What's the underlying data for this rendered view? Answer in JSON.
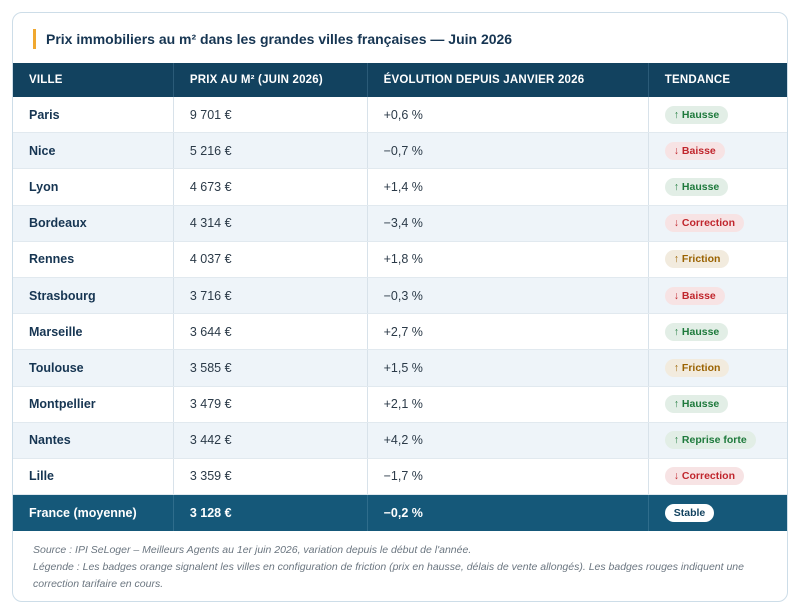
{
  "title": "Prix immobiliers au m² dans les grandes villes françaises — Juin 2026",
  "table": {
    "columns": [
      "VILLE",
      "PRIX AU M² (JUIN 2026)",
      "ÉVOLUTION DEPUIS JANVIER 2026",
      "TENDANCE"
    ],
    "rows": [
      [
        "Paris",
        "9 701 €",
        "+0,6 %",
        {
          "text": "↑ Hausse",
          "color": "#1e7a3c"
        }
      ],
      [
        "Nice",
        "5 216 €",
        "−0,7 %",
        {
          "text": "↓ Baisse",
          "color": "#c0262d"
        }
      ],
      [
        "Lyon",
        "4 673 €",
        "+1,4 %",
        {
          "text": "↑ Hausse",
          "color": "#1e7a3c"
        }
      ],
      [
        "Bordeaux",
        "4 314 €",
        "−3,4 %",
        {
          "text": "↓ Correction",
          "color": "#c0262d"
        }
      ],
      [
        "Rennes",
        "4 037 €",
        "+1,8 %",
        {
          "text": "↑ Friction",
          "color": "#9a6200"
        }
      ],
      [
        "Strasbourg",
        "3 716 €",
        "−0,3 %",
        {
          "text": "↓ Baisse",
          "color": "#c0262d"
        }
      ],
      [
        "Marseille",
        "3 644 €",
        "+2,7 %",
        {
          "text": "↑ Hausse",
          "color": "#1e7a3c"
        }
      ],
      [
        "Toulouse",
        "3 585 €",
        "+1,5 %",
        {
          "text": "↑ Friction",
          "color": "#9a6200"
        }
      ],
      [
        "Montpellier",
        "3 479 €",
        "+2,1 %",
        {
          "text": "↑ Hausse",
          "color": "#1e7a3c"
        }
      ],
      [
        "Nantes",
        "3 442 €",
        "+4,2 %",
        {
          "text": "↑ Reprise forte",
          "color": "#1e7a3c"
        }
      ],
      [
        "Lille",
        "3 359 €",
        "−1,7 %",
        {
          "text": "↓ Correction",
          "color": "#c0262d"
        }
      ]
    ],
    "total": [
      "France (moyenne)",
      "3 128 €",
      "−0,2 %",
      {
        "text": "Stable",
        "color": "#12425f"
      }
    ]
  },
  "notes": [
    "Source : IPI SeLoger – Meilleurs Agents au 1er juin 2026, variation depuis le début de l'année.",
    "Légende : Les badges orange signalent les villes en configuration de friction (prix en hausse, délais de vente allongés). Les badges rouges indiquent une correction tarifaire en cours."
  ]
}
